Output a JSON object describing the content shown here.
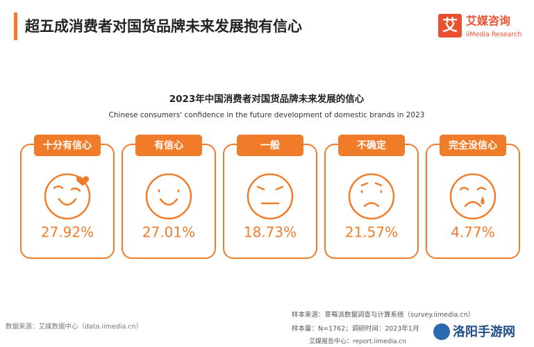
{
  "header": {
    "title": "超五成消费者对国货品牌未来发展抱有信心",
    "logo_mark": "艾",
    "logo_name": "艾媒咨询",
    "logo_sub": "iiMedia Research"
  },
  "chart_data": {
    "type": "face-cards",
    "title": "2023年中国消费者对国货品牌未来发展的信心",
    "subtitle": "Chinese consumers' confidence in the future development of domestic brands in 2023",
    "categories": [
      "十分有信心",
      "有信心",
      "一般",
      "不确定",
      "完全没信心"
    ],
    "values": [
      27.92,
      27.01,
      18.73,
      21.57,
      4.77
    ],
    "value_labels": [
      "27.92%",
      "27.01%",
      "18.73%",
      "21.57%",
      "4.77%"
    ],
    "color": "#f07c2a"
  },
  "footer": {
    "source": "数据来源：艾媒数据中心（data.iimedia.cn）",
    "sample_source": "样本来源：草莓派数据调查与计算系统（survey.iimedia.cn）",
    "sample_size": "样本量：N=1762；调研时间：2023年1月",
    "report_center": "艾媒报告中心：report.iimedia.cn",
    "watermark": "洛阳手游网"
  }
}
